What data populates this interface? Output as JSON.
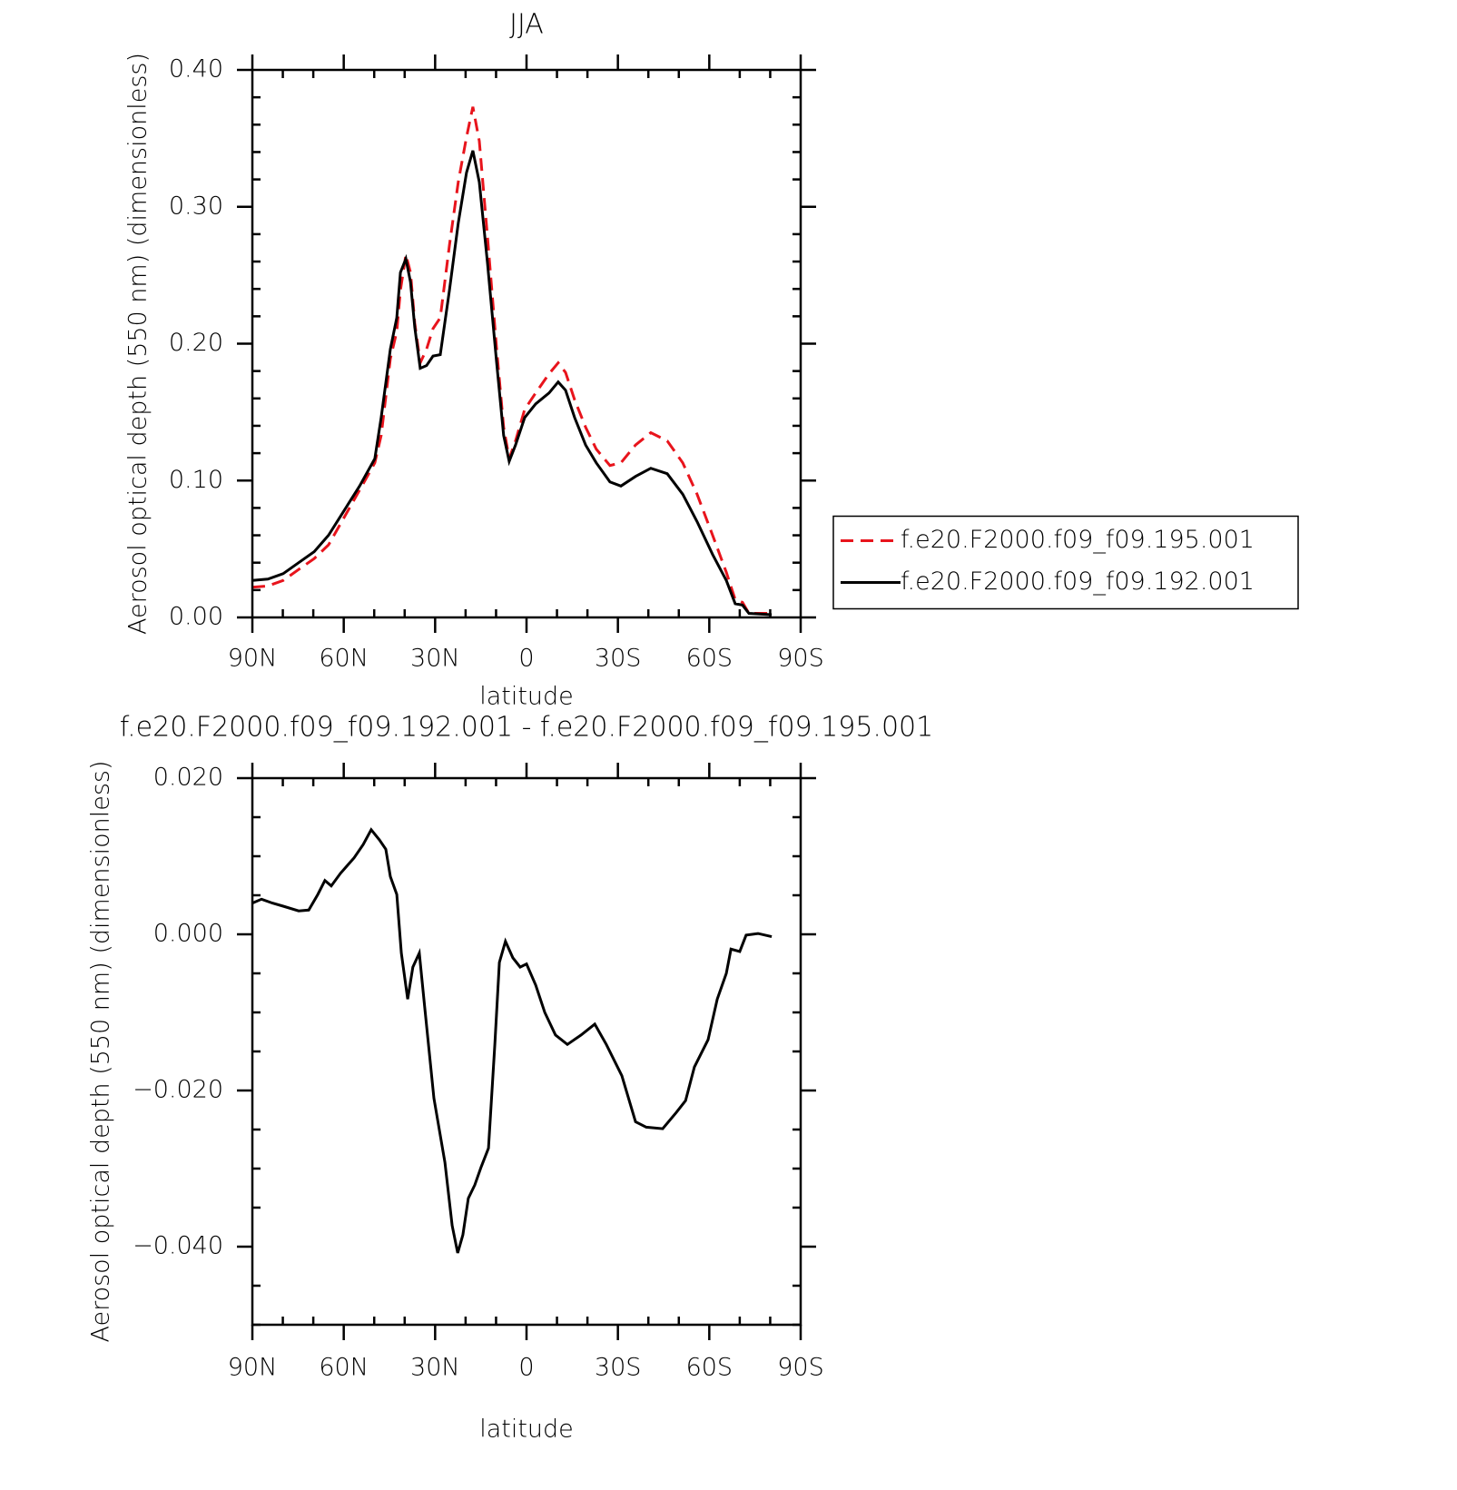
{
  "chart_data": [
    {
      "type": "line",
      "title": "JJA",
      "x_label": "latitude",
      "y_label": "Aerosol optical depth (550 nm) (dimensionless)",
      "x": [
        90,
        84.9,
        79.9,
        74.8,
        69.7,
        65.0,
        59.9,
        54.8,
        49.8,
        47.7,
        44.7,
        42.6,
        41.4,
        39.6,
        38.1,
        36.7,
        34.9,
        32.8,
        30.7,
        28.3,
        25.3,
        22.4,
        19.7,
        17.6,
        15.5,
        12.8,
        9.8,
        7.5,
        5.7,
        3.6,
        0.6,
        -3.0,
        -7.4,
        -10.4,
        -12.8,
        -15.8,
        -19.4,
        -22.9,
        -27.4,
        -31.0,
        -35.8,
        -40.8,
        -46.2,
        -51.3,
        -56.0,
        -61.1,
        -65.6,
        -68.5,
        -70.9,
        -73.0,
        -80.5
      ],
      "xlim": [
        90,
        -90
      ],
      "xticks": [
        {
          "value": 90,
          "label": "90N"
        },
        {
          "value": 60,
          "label": "60N"
        },
        {
          "value": 30,
          "label": "30N"
        },
        0,
        {
          "value": -30,
          "label": "30S"
        },
        {
          "value": -60,
          "label": "60S"
        },
        {
          "value": -90,
          "label": "90S"
        }
      ],
      "ylim": [
        0,
        0.4
      ],
      "yticks": [
        {
          "value": 0,
          "label": "0.00"
        },
        {
          "value": 0.1,
          "label": "0.10"
        },
        {
          "value": 0.2,
          "label": "0.20"
        },
        {
          "value": 0.3,
          "label": "0.30"
        },
        {
          "value": 0.4,
          "label": "0.40"
        }
      ],
      "legend": "right",
      "series": [
        {
          "name": "f.e20.F2000.f09_f09.195.001",
          "color": "#e8141c",
          "line_style": "dashed",
          "values": [
            0.022,
            0.023,
            0.027,
            0.035,
            0.043,
            0.053,
            0.073,
            0.093,
            0.113,
            0.133,
            0.189,
            0.209,
            0.239,
            0.265,
            0.252,
            0.215,
            0.186,
            0.196,
            0.211,
            0.219,
            0.272,
            0.318,
            0.351,
            0.373,
            0.348,
            0.278,
            0.196,
            0.139,
            0.116,
            0.129,
            0.152,
            0.164,
            0.178,
            0.186,
            0.179,
            0.159,
            0.139,
            0.123,
            0.111,
            0.113,
            0.126,
            0.135,
            0.129,
            0.113,
            0.09,
            0.06,
            0.033,
            0.013,
            0.011,
            0.003,
            0.003
          ]
        },
        {
          "name": "f.e20.F2000.f09_f09.192.001",
          "color": "#000000",
          "line_style": "solid",
          "values": [
            0.027,
            0.028,
            0.032,
            0.04,
            0.048,
            0.06,
            0.078,
            0.096,
            0.116,
            0.146,
            0.196,
            0.219,
            0.252,
            0.262,
            0.245,
            0.212,
            0.182,
            0.184,
            0.191,
            0.192,
            0.239,
            0.288,
            0.325,
            0.341,
            0.318,
            0.259,
            0.186,
            0.133,
            0.114,
            0.126,
            0.146,
            0.156,
            0.164,
            0.172,
            0.166,
            0.146,
            0.126,
            0.113,
            0.099,
            0.096,
            0.103,
            0.109,
            0.105,
            0.09,
            0.07,
            0.046,
            0.027,
            0.01,
            0.009,
            0.003,
            0.002
          ]
        }
      ]
    },
    {
      "type": "line",
      "title": "f.e20.F2000.f09_f09.192.001 - f.e20.F2000.f09_f09.195.001",
      "x_label": "latitude",
      "y_label": "Aerosol optical depth (550 nm) (dimensionless)",
      "x": [
        90,
        87.0,
        83.4,
        79.9,
        74.8,
        71.5,
        68.5,
        66.2,
        64.1,
        61.1,
        56.6,
        53.6,
        51.0,
        48.3,
        46.2,
        44.7,
        42.6,
        41.1,
        39.0,
        37.3,
        35.2,
        33.4,
        30.4,
        26.8,
        24.4,
        22.6,
        20.9,
        19.1,
        17.0,
        14.9,
        12.5,
        10.4,
        8.9,
        6.9,
        4.5,
        2.1,
        0.0,
        -3.0,
        -6.0,
        -9.5,
        -13.4,
        -17.9,
        -22.4,
        -26.2,
        -31.3,
        -35.8,
        -39.3,
        -44.7,
        -49.2,
        -52.2,
        -55.1,
        -59.6,
        -62.6,
        -65.6,
        -67.1,
        -70.0,
        -72.1,
        -76.0,
        -80.5
      ],
      "xlim": [
        90,
        -90
      ],
      "xticks": [
        {
          "value": 90,
          "label": "90N"
        },
        {
          "value": 60,
          "label": "60N"
        },
        {
          "value": 30,
          "label": "30N"
        },
        0,
        {
          "value": -30,
          "label": "30S"
        },
        {
          "value": -60,
          "label": "60S"
        },
        {
          "value": -90,
          "label": "90S"
        }
      ],
      "ylim": [
        -0.05,
        0.02
      ],
      "yticks": [
        {
          "value": 0.02,
          "label": "0.020"
        },
        {
          "value": 0,
          "label": "0.000"
        },
        {
          "value": -0.02,
          "label": "−0.020"
        },
        {
          "value": -0.04,
          "label": "−0.040"
        }
      ],
      "series": [
        {
          "name": "f.e20.F2000.f09_f09.192.001 - f.e20.F2000.f09_f09.195.001",
          "color": "#000000",
          "line_style": "solid",
          "values": [
            0.004,
            0.0045,
            0.004,
            0.0036,
            0.003,
            0.0031,
            0.0051,
            0.0069,
            0.0062,
            0.0078,
            0.0098,
            0.0115,
            0.0134,
            0.0121,
            0.0109,
            0.0074,
            0.0051,
            -0.0024,
            -0.0083,
            -0.0042,
            -0.0024,
            -0.0094,
            -0.021,
            -0.0292,
            -0.0373,
            -0.0408,
            -0.0385,
            -0.0338,
            -0.0321,
            -0.0298,
            -0.0274,
            -0.0141,
            -0.0036,
            -0.0009,
            -0.003,
            -0.0042,
            -0.0038,
            -0.0065,
            -0.01,
            -0.0129,
            -0.0141,
            -0.0129,
            -0.0115,
            -0.0141,
            -0.0181,
            -0.024,
            -0.0247,
            -0.0249,
            -0.0228,
            -0.0213,
            -0.017,
            -0.0135,
            -0.0083,
            -0.005,
            -0.0019,
            -0.0022,
            -0.0001,
            0.0001,
            -0.0003
          ]
        }
      ]
    }
  ]
}
